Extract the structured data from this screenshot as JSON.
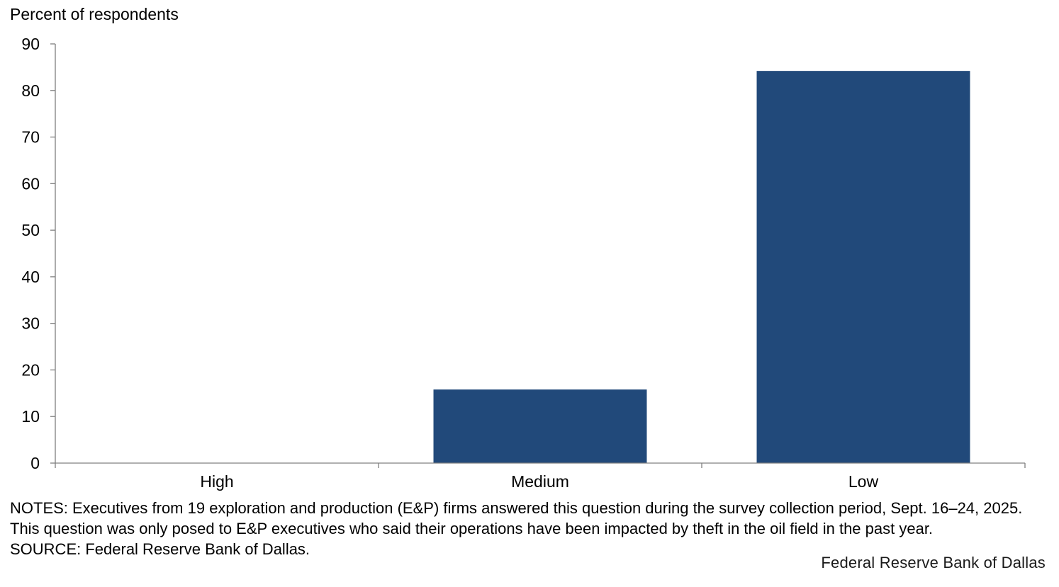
{
  "chart_data": {
    "type": "bar",
    "ylabel": "Percent of respondents",
    "xlabel": "",
    "title": "",
    "categories": [
      "High",
      "Medium",
      "Low"
    ],
    "values": [
      0,
      15.8,
      84.2
    ],
    "ylim": [
      0,
      90
    ],
    "yticks": [
      0,
      10,
      20,
      30,
      40,
      50,
      60,
      70,
      80,
      90
    ],
    "grid": false,
    "bar_color": "#21497A"
  },
  "notes": {
    "text": "NOTES: Executives from 19 exploration and production (E&P) firms answered this question during the survey collection period, Sept. 16–24, 2025. This question was only posed to E&P executives who said their operations have been impacted by theft in the oil field in the past year.",
    "source": "SOURCE: Federal Reserve Bank of Dallas."
  },
  "branding": {
    "text": "Federal Reserve Bank of Dallas"
  }
}
